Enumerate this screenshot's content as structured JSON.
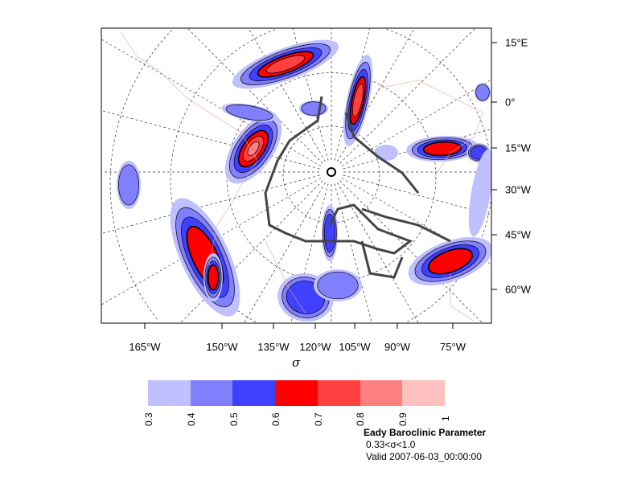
{
  "map": {
    "type": "filled-contour",
    "projection": "polar-stereographic",
    "right_axis_labels": [
      "15°E",
      "0°",
      "15°W",
      "30°W",
      "45°W",
      "60°W"
    ],
    "bottom_axis_labels": [
      "165°W",
      "150°W",
      "135°W",
      "120°W",
      "105°W",
      "90°W",
      "75°W"
    ],
    "xlabel": "σ"
  },
  "colorbar": {
    "levels": [
      "0.3",
      "0.4",
      "0.5",
      "0.6",
      "0.7",
      "0.8",
      "0.9",
      "1"
    ],
    "colors": [
      "#c0c0ff",
      "#8080ff",
      "#4040ff",
      "#ff0000",
      "#ff4040",
      "#ff8080",
      "#ffc0c0"
    ]
  },
  "title": "Eady Baroclinic Parameter",
  "subtitle": "0.33<σ<1.0",
  "valid": "Valid 2007-06-03_00:00:00"
}
